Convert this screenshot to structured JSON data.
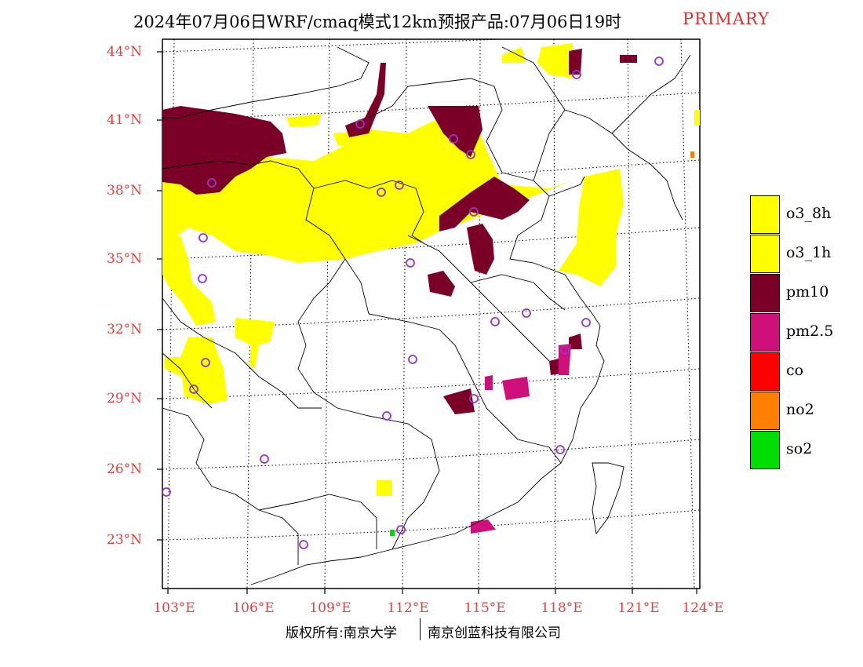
{
  "title": {
    "main": "2024年07月06日WRF/cmaq模式12km预报产品:07月06日19时",
    "tag": "PRIMARY"
  },
  "lat_labels": [
    "44°N",
    "41°N",
    "38°N",
    "35°N",
    "32°N",
    "29°N",
    "26°N",
    "23°N"
  ],
  "lon_labels": [
    "103°E",
    "106°E",
    "109°E",
    "112°E",
    "115°E",
    "118°E",
    "121°E",
    "124°E"
  ],
  "legend": [
    {
      "label": "o3_8h",
      "color": "#ffff00"
    },
    {
      "label": "o3_1h",
      "color": "#ffff00"
    },
    {
      "label": "pm10",
      "color": "#7a0028"
    },
    {
      "label": "pm2.5",
      "color": "#d0107a"
    },
    {
      "label": "co",
      "color": "#ff0000"
    },
    {
      "label": "no2",
      "color": "#ff8000"
    },
    {
      "label": "so2",
      "color": "#00dd00"
    }
  ],
  "credit": {
    "left": "版权所有:南京大学",
    "right": "南京创蓝科技有限公司"
  },
  "colors": {
    "o3": "#ffff00",
    "pm10": "#7a0028",
    "pm25": "#d0107a",
    "so2": "#00dd00",
    "no2": "#ff8000",
    "station": "#9933cc",
    "axis_label": "#e84040"
  }
}
